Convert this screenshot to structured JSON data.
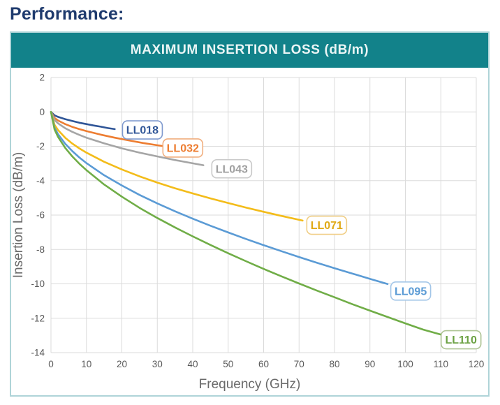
{
  "page": {
    "heading": "Performance:"
  },
  "colors": {
    "heading_text": "#1E3A6D",
    "title_bar_bg": "#12828A",
    "title_bar_text": "#EAF5F5",
    "card_border": "#AFD4D8",
    "grid": "#DBDBDB",
    "tick_label": "#595959",
    "axis_title": "#6A6A6A",
    "plot_bg": "#FFFFFF"
  },
  "chart_data": {
    "type": "line",
    "title": "MAXIMUM INSERTION LOSS (dB/m)",
    "xlabel": "Frequency (GHz)",
    "ylabel": "Insertion Loss (dB/m)",
    "xlim": [
      0,
      120
    ],
    "ylim": [
      -14,
      2
    ],
    "grid": true,
    "legend_position": "inline-labels",
    "x_ticks": [
      "0",
      "10",
      "20",
      "30",
      "40",
      "50",
      "60",
      "70",
      "80",
      "90",
      "100",
      "110",
      "120"
    ],
    "y_ticks": [
      "2",
      "0",
      "-2",
      "-4",
      "-6",
      "-8",
      "-10",
      "-12",
      "-14"
    ],
    "series": [
      {
        "name": "LL018",
        "color": "#2F5597",
        "label_color": "#2F5597",
        "label_border": "#7E99CE",
        "label_pos": {
          "f": 25.8,
          "db": -1.05
        },
        "points": [
          [
            0,
            0
          ],
          [
            1,
            -0.2
          ],
          [
            2,
            -0.29
          ],
          [
            4,
            -0.42
          ],
          [
            6,
            -0.53
          ],
          [
            8,
            -0.63
          ],
          [
            10,
            -0.71
          ],
          [
            12,
            -0.79
          ],
          [
            14,
            -0.86
          ],
          [
            16,
            -0.94
          ],
          [
            18,
            -1.0
          ]
        ]
      },
      {
        "name": "LL032",
        "color": "#ED7D31",
        "label_color": "#ED7D31",
        "label_border": "#F1AE7E",
        "label_pos": {
          "f": 37.2,
          "db": -2.1
        },
        "points": [
          [
            0,
            0
          ],
          [
            1,
            -0.35
          ],
          [
            2,
            -0.5
          ],
          [
            4,
            -0.71
          ],
          [
            6,
            -0.87
          ],
          [
            8,
            -1.0
          ],
          [
            10,
            -1.12
          ],
          [
            14,
            -1.32
          ],
          [
            18,
            -1.5
          ],
          [
            22,
            -1.66
          ],
          [
            26,
            -1.81
          ],
          [
            30,
            -1.94
          ],
          [
            32,
            -2.0
          ]
        ]
      },
      {
        "name": "LL043",
        "color": "#A5A5A5",
        "label_color": "#A0A0A0",
        "label_border": "#C9C9C9",
        "label_pos": {
          "f": 51.0,
          "db": -3.31
        },
        "points": [
          [
            0,
            0
          ],
          [
            1,
            -0.47
          ],
          [
            2,
            -0.67
          ],
          [
            4,
            -0.95
          ],
          [
            6,
            -1.16
          ],
          [
            8,
            -1.34
          ],
          [
            10,
            -1.5
          ],
          [
            15,
            -1.83
          ],
          [
            20,
            -2.12
          ],
          [
            25,
            -2.37
          ],
          [
            30,
            -2.59
          ],
          [
            35,
            -2.8
          ],
          [
            40,
            -2.99
          ],
          [
            43,
            -3.1
          ]
        ]
      },
      {
        "name": "LL071",
        "color": "#F3BC1A",
        "label_color": "#E0A915",
        "label_border": "#F0CE85",
        "label_pos": {
          "f": 77.8,
          "db": -6.59
        },
        "points": [
          [
            0,
            0
          ],
          [
            1,
            -0.75
          ],
          [
            2,
            -1.06
          ],
          [
            4,
            -1.5
          ],
          [
            6,
            -1.84
          ],
          [
            8,
            -2.12
          ],
          [
            10,
            -2.37
          ],
          [
            15,
            -2.9
          ],
          [
            20,
            -3.35
          ],
          [
            25,
            -3.75
          ],
          [
            30,
            -4.11
          ],
          [
            35,
            -4.44
          ],
          [
            40,
            -4.74
          ],
          [
            45,
            -5.03
          ],
          [
            50,
            -5.3
          ],
          [
            55,
            -5.56
          ],
          [
            60,
            -5.81
          ],
          [
            65,
            -6.05
          ],
          [
            71,
            -6.32
          ]
        ]
      },
      {
        "name": "LL095",
        "color": "#5B9BD5",
        "label_color": "#5B9BD5",
        "label_border": "#A3C6E8",
        "label_pos": {
          "f": 101.5,
          "db": -10.42
        },
        "points": [
          [
            0,
            0
          ],
          [
            1,
            -0.91
          ],
          [
            2,
            -1.3
          ],
          [
            4,
            -1.85
          ],
          [
            6,
            -2.28
          ],
          [
            8,
            -2.65
          ],
          [
            10,
            -2.98
          ],
          [
            15,
            -3.68
          ],
          [
            20,
            -4.28
          ],
          [
            25,
            -4.83
          ],
          [
            30,
            -5.32
          ],
          [
            35,
            -5.78
          ],
          [
            40,
            -6.21
          ],
          [
            45,
            -6.62
          ],
          [
            50,
            -7.01
          ],
          [
            55,
            -7.39
          ],
          [
            60,
            -7.75
          ],
          [
            65,
            -8.1
          ],
          [
            70,
            -8.44
          ],
          [
            75,
            -8.77
          ],
          [
            80,
            -9.09
          ],
          [
            85,
            -9.4
          ],
          [
            90,
            -9.71
          ],
          [
            95,
            -10.01
          ]
        ]
      },
      {
        "name": "LL110",
        "color": "#70AD47",
        "label_color": "#6CA244",
        "label_border": "#AEC494",
        "label_pos": {
          "f": 115.7,
          "db": -13.25
        },
        "points": [
          [
            0,
            0
          ],
          [
            1,
            -1.02
          ],
          [
            2,
            -1.46
          ],
          [
            4,
            -2.09
          ],
          [
            6,
            -2.59
          ],
          [
            8,
            -3.01
          ],
          [
            10,
            -3.39
          ],
          [
            15,
            -4.22
          ],
          [
            20,
            -4.93
          ],
          [
            25,
            -5.58
          ],
          [
            30,
            -6.17
          ],
          [
            35,
            -6.72
          ],
          [
            40,
            -7.24
          ],
          [
            45,
            -7.74
          ],
          [
            50,
            -8.22
          ],
          [
            55,
            -8.68
          ],
          [
            60,
            -9.13
          ],
          [
            65,
            -9.56
          ],
          [
            70,
            -9.98
          ],
          [
            75,
            -10.39
          ],
          [
            80,
            -10.78
          ],
          [
            85,
            -11.18
          ],
          [
            90,
            -11.56
          ],
          [
            95,
            -11.93
          ],
          [
            100,
            -12.3
          ],
          [
            105,
            -12.66
          ],
          [
            110,
            -12.95
          ]
        ]
      }
    ]
  }
}
